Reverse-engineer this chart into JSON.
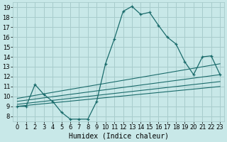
{
  "xlabel": "Humidex (Indice chaleur)",
  "xlim": [
    -0.5,
    23.5
  ],
  "ylim": [
    7.5,
    19.5
  ],
  "xticks": [
    0,
    1,
    2,
    3,
    4,
    5,
    6,
    7,
    8,
    9,
    10,
    11,
    12,
    13,
    14,
    15,
    16,
    17,
    18,
    19,
    20,
    21,
    22,
    23
  ],
  "yticks": [
    8,
    9,
    10,
    11,
    12,
    13,
    14,
    15,
    16,
    17,
    18,
    19
  ],
  "bg_color": "#c8e8e8",
  "grid_color": "#a8cccc",
  "line_color": "#1a6b6b",
  "main_x": [
    0,
    1,
    2,
    3,
    4,
    5,
    6,
    7,
    8,
    9,
    10,
    11,
    12,
    13,
    14,
    15,
    16,
    17,
    18,
    19,
    20,
    21,
    22,
    23
  ],
  "main_y": [
    9.0,
    9.0,
    11.2,
    10.2,
    9.5,
    8.4,
    7.7,
    7.7,
    7.7,
    9.5,
    13.3,
    15.8,
    18.6,
    19.1,
    18.3,
    18.5,
    17.2,
    16.0,
    15.3,
    13.5,
    12.2,
    14.0,
    14.1,
    12.2
  ],
  "trend_lines": [
    [
      0,
      23,
      9.0,
      11.0
    ],
    [
      0,
      23,
      9.2,
      11.5
    ],
    [
      0,
      23,
      9.5,
      12.2
    ],
    [
      0,
      23,
      9.8,
      13.3
    ]
  ],
  "tick_fontsize": 6,
  "xlabel_fontsize": 7
}
